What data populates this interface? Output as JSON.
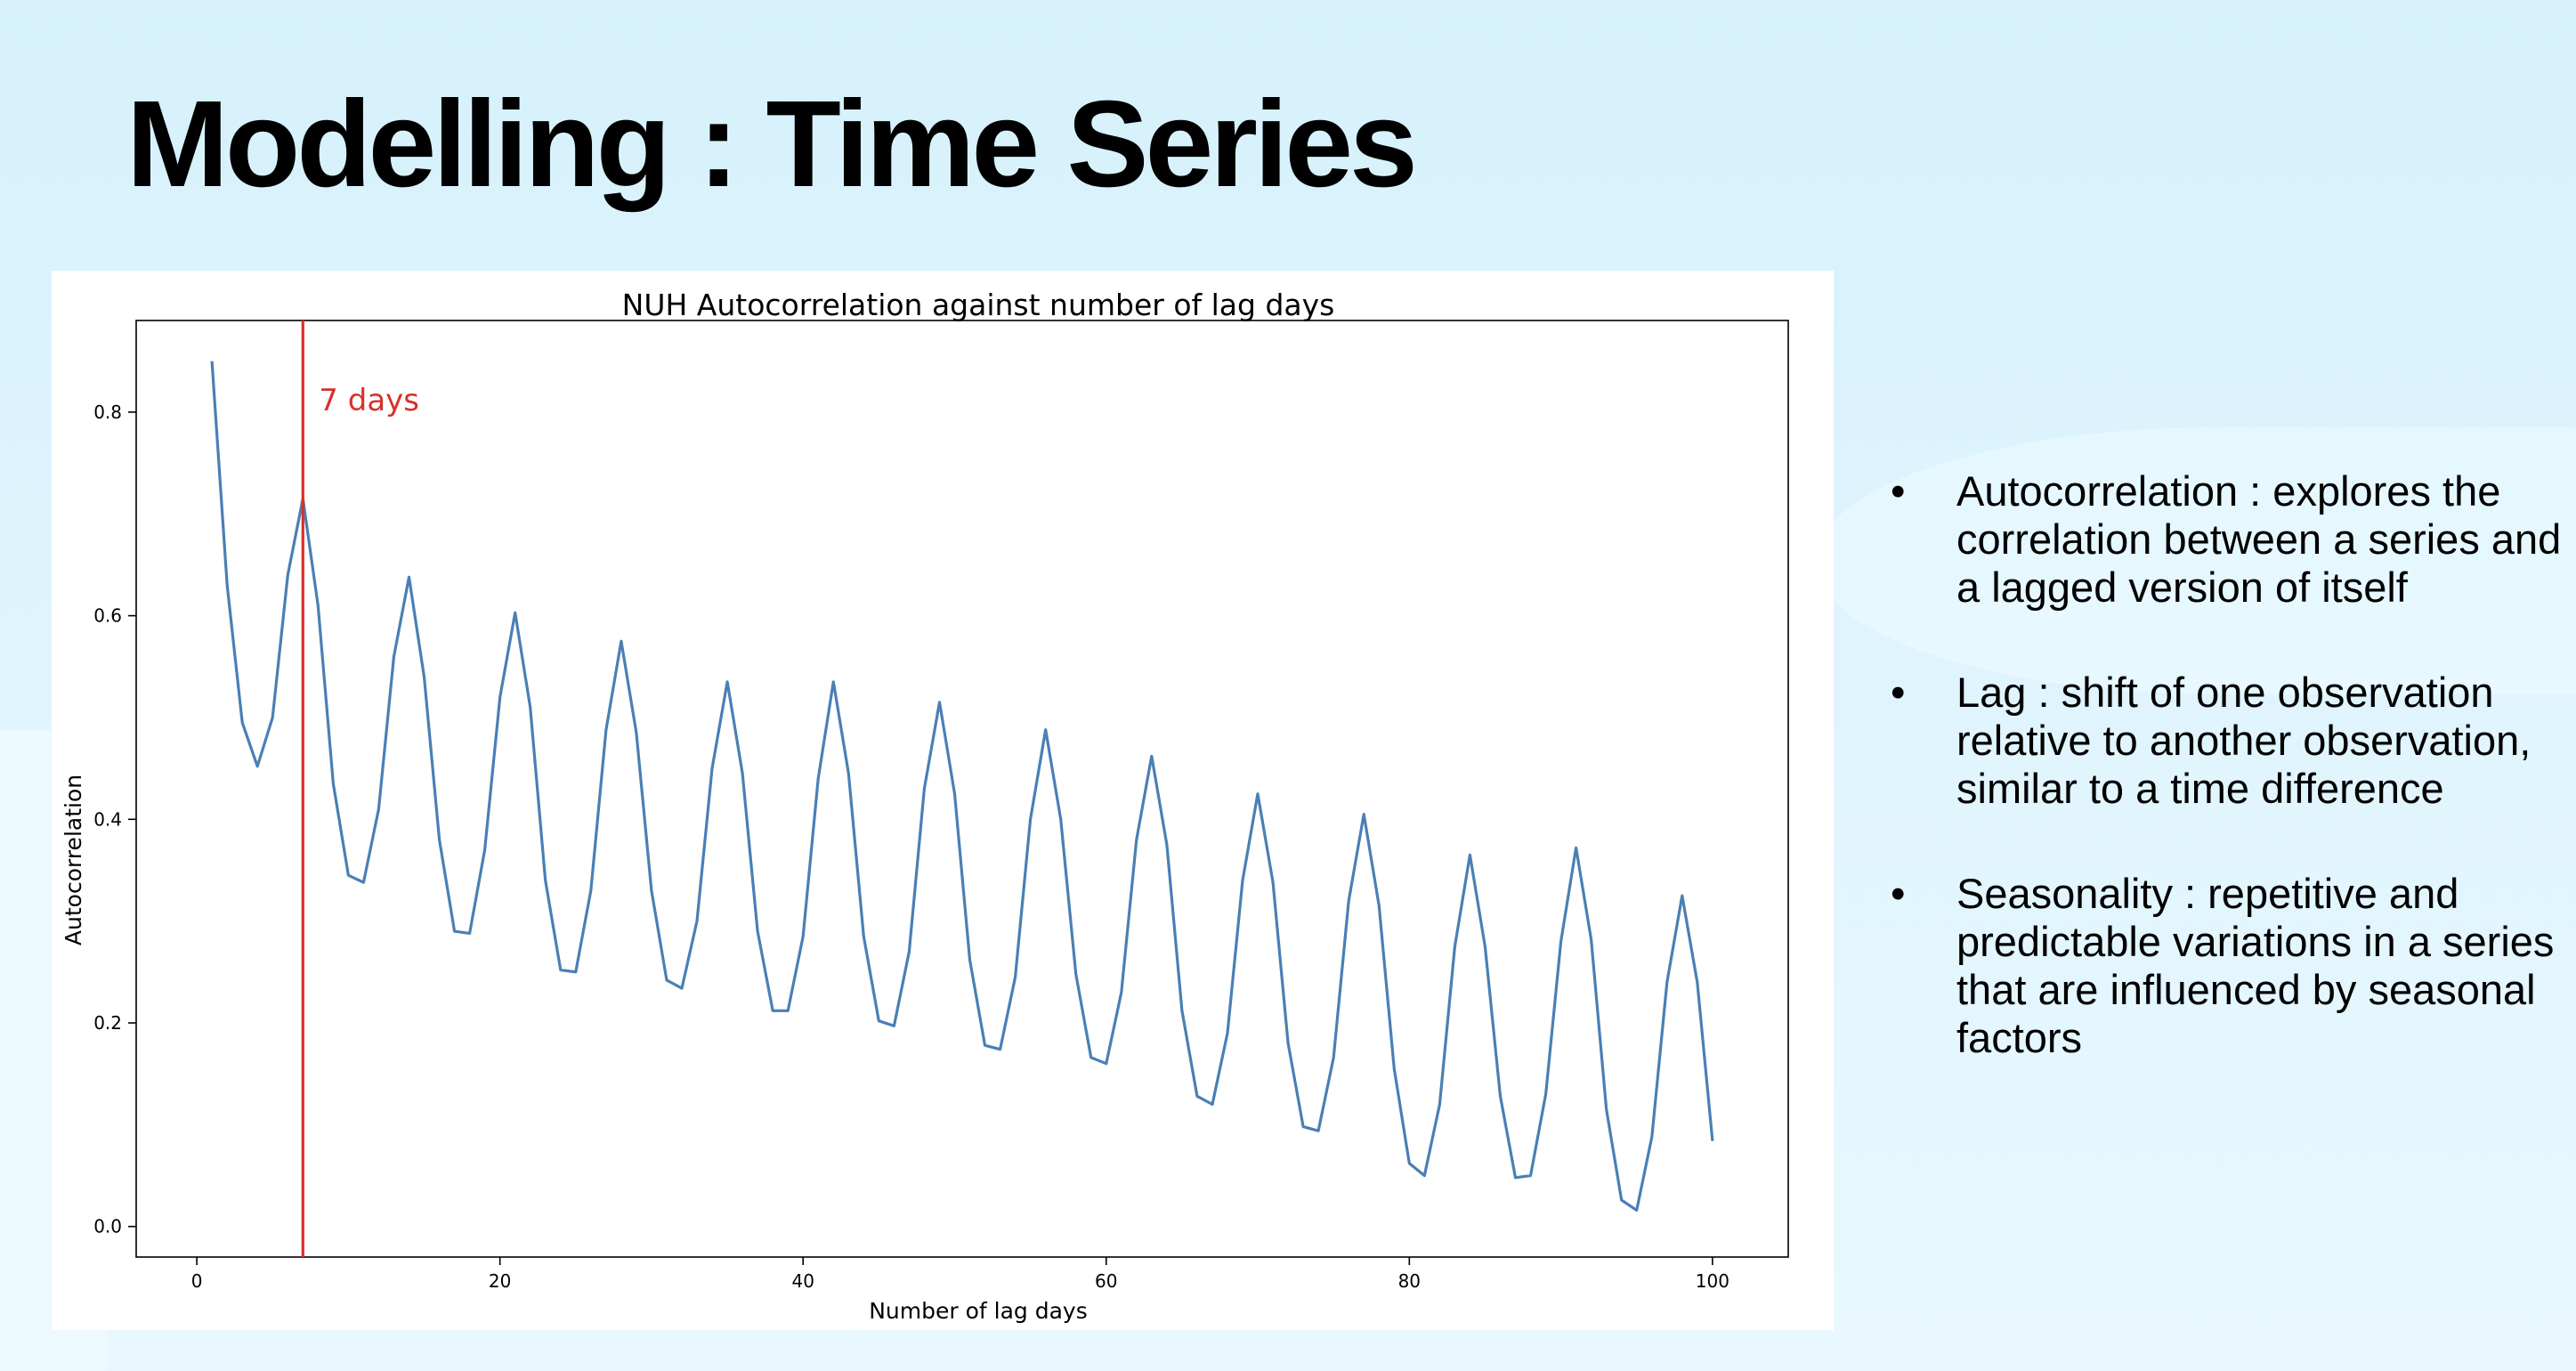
{
  "slide": {
    "title": "Modelling : Time Series",
    "bullets": [
      "Autocorrelation : explores the correlation between a series and a lagged version of itself",
      "Lag : shift of one observation relative to another observation, similar to a time difference",
      "Seasonality : repetitive and predictable variations in a series that are influenced by seasonal factors"
    ]
  },
  "chart_data": {
    "type": "line",
    "title": "NUH Autocorrelation against number of lag days",
    "xlabel": "Number of lag days",
    "ylabel": "Autocorrelation",
    "xlim": [
      -4,
      105
    ],
    "ylim": [
      -0.03,
      0.89
    ],
    "xticks": [
      0,
      20,
      40,
      60,
      80,
      100
    ],
    "yticks": [
      0.0,
      0.2,
      0.4,
      0.6,
      0.8
    ],
    "line_color": "#4a7fb5",
    "grid": false,
    "vline": {
      "x": 7,
      "label": "7 days",
      "color": "#d9302b"
    },
    "series": [
      {
        "x": [
          1,
          2,
          3,
          4,
          5,
          6,
          7,
          8,
          9,
          10,
          11,
          12,
          13,
          14,
          15,
          16,
          17,
          18,
          19,
          20,
          21,
          22,
          23,
          24,
          25,
          26,
          27,
          28,
          29,
          30,
          31,
          32,
          33,
          34,
          35,
          36,
          37,
          38,
          39,
          40,
          41,
          42,
          43,
          44,
          45,
          46,
          47,
          48,
          49,
          50,
          51,
          52,
          53,
          54,
          55,
          56,
          57,
          58,
          59,
          60,
          61,
          62,
          63,
          64,
          65,
          66,
          67,
          68,
          69,
          70,
          71,
          72,
          73,
          74,
          75,
          76,
          77,
          78,
          79,
          80,
          81,
          82,
          83,
          84,
          85,
          86,
          87,
          88,
          89,
          90,
          91,
          92,
          93,
          94,
          95,
          96,
          97,
          98,
          99,
          100
        ],
        "values": [
          0.85,
          0.63,
          0.495,
          0.452,
          0.5,
          0.64,
          0.715,
          0.61,
          0.435,
          0.345,
          0.338,
          0.41,
          0.56,
          0.638,
          0.54,
          0.38,
          0.29,
          0.288,
          0.37,
          0.52,
          0.603,
          0.51,
          0.34,
          0.252,
          0.25,
          0.33,
          0.488,
          0.575,
          0.485,
          0.33,
          0.242,
          0.234,
          0.3,
          0.45,
          0.535,
          0.445,
          0.29,
          0.212,
          0.212,
          0.285,
          0.44,
          0.535,
          0.445,
          0.285,
          0.202,
          0.197,
          0.27,
          0.43,
          0.515,
          0.425,
          0.262,
          0.178,
          0.174,
          0.245,
          0.4,
          0.488,
          0.4,
          0.248,
          0.166,
          0.16,
          0.23,
          0.38,
          0.462,
          0.375,
          0.212,
          0.128,
          0.12,
          0.19,
          0.34,
          0.425,
          0.338,
          0.18,
          0.098,
          0.094,
          0.166,
          0.32,
          0.405,
          0.315,
          0.155,
          0.062,
          0.05,
          0.12,
          0.275,
          0.365,
          0.275,
          0.128,
          0.048,
          0.05,
          0.13,
          0.28,
          0.372,
          0.282,
          0.115,
          0.026,
          0.016,
          0.088,
          0.24,
          0.325,
          0.24,
          0.084
        ]
      }
    ]
  }
}
